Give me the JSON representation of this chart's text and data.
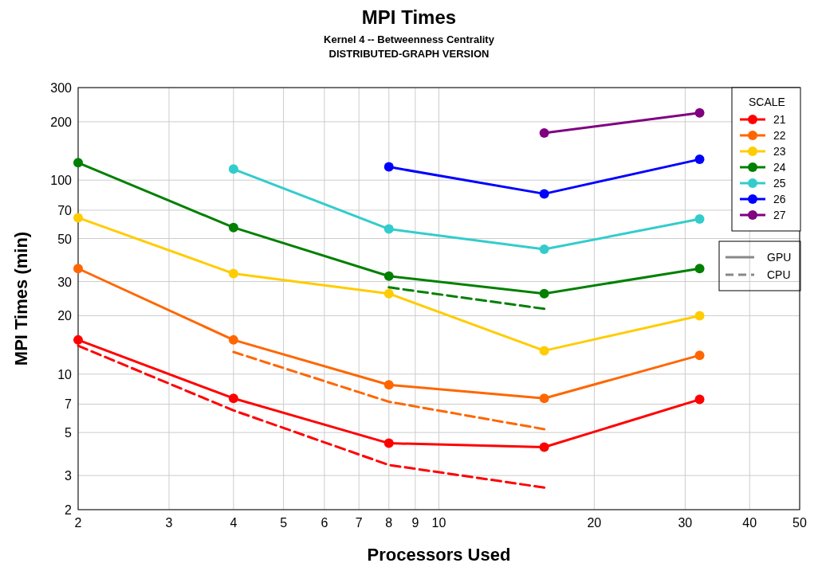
{
  "chart_data": {
    "type": "line",
    "title": "MPI Times",
    "subtitle": "Kernel 4 -- Betweenness Centrality\nDISTRIBUTED-GRAPH VERSION",
    "xlabel": "Processors Used",
    "ylabel": "MPI Times (min)",
    "legend_title": "SCALE",
    "log": "xy",
    "grid": true,
    "legend": "top right",
    "marker": "circle",
    "xlim": [
      2,
      50
    ],
    "xticks": [
      2,
      3,
      4,
      5,
      6,
      7,
      8,
      9,
      10,
      20,
      30,
      40,
      50
    ],
    "ylim": [
      2,
      300
    ],
    "yticks": [
      2,
      3,
      5,
      7,
      10,
      20,
      30,
      50,
      70,
      100,
      200,
      300
    ],
    "annotations": [
      "GPU",
      "CPU"
    ],
    "series": [
      {
        "name": "21",
        "color": "#ff0000",
        "x": [
          2,
          4,
          8,
          16,
          32
        ],
        "values": [
          15,
          7.5,
          4.4,
          4.2,
          7.4
        ]
      },
      {
        "name": "22",
        "color": "#ff6600",
        "x": [
          2,
          4,
          8,
          16,
          32
        ],
        "values": [
          35,
          15,
          8.8,
          7.5,
          12.5
        ]
      },
      {
        "name": "23",
        "color": "#ffcc00",
        "x": [
          2,
          4,
          8,
          16,
          32
        ],
        "values": [
          64,
          33,
          26,
          13.2,
          20
        ]
      },
      {
        "name": "24",
        "color": "#008000",
        "x": [
          2,
          4,
          8,
          16,
          32
        ],
        "values": [
          123,
          57,
          32,
          26,
          35
        ]
      },
      {
        "name": "25",
        "color": "#33cccc",
        "x": [
          4,
          8,
          16,
          32
        ],
        "values": [
          114,
          56,
          44,
          63
        ]
      },
      {
        "name": "26",
        "color": "#0000ff",
        "x": [
          8,
          16,
          32
        ],
        "values": [
          117,
          85,
          128
        ]
      },
      {
        "name": "27",
        "color": "#800080",
        "x": [
          16,
          32
        ],
        "values": [
          175,
          222
        ]
      },
      {
        "color": "#ff0000",
        "x": [
          2,
          4,
          8,
          16
        ],
        "values": [
          14,
          6.5,
          3.4,
          2.6
        ],
        "line_style": "dashed",
        "marker": "none"
      },
      {
        "color": "#ff6600",
        "x": [
          4,
          8,
          16
        ],
        "values": [
          13,
          7.2,
          5.2
        ],
        "line_style": "dashed",
        "marker": "none"
      },
      {
        "color": "#008000",
        "x": [
          8,
          16
        ],
        "values": [
          28,
          21.7
        ],
        "line_style": "dashed",
        "marker": "none"
      }
    ]
  }
}
